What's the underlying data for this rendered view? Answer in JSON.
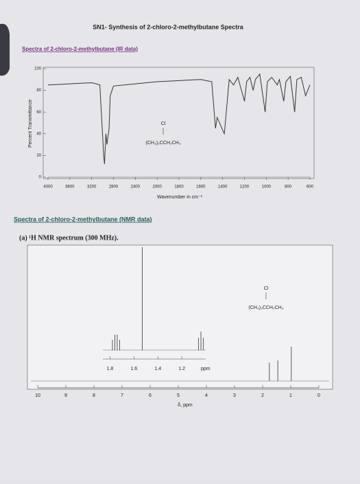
{
  "title": "SN1- Synthesis of 2-chloro-2-methylbutane Spectra",
  "chart_data": [
    {
      "type": "ir",
      "heading": "Spectra of 2-chloro-2-methylbutane (IR data)",
      "xlabel": "Wavenumber in cm⁻¹",
      "ylabel": "Percent Transmittance",
      "annotation": {
        "top": "Cl",
        "main": "(CH₃)₂CCH₂CH₃"
      },
      "x": [
        4000,
        3600,
        3200,
        3050,
        2980,
        2965,
        2940,
        2920,
        2880,
        2860,
        2800,
        2400,
        2000,
        1800,
        1600,
        1500,
        1465,
        1450,
        1385,
        1375,
        1340,
        1300,
        1260,
        1200,
        1180,
        1150,
        1120,
        1100,
        1060,
        1010,
        990,
        950,
        900,
        880,
        840,
        820,
        780,
        740,
        720,
        680,
        640,
        600
      ],
      "values": [
        85,
        86,
        87,
        85,
        20,
        12,
        40,
        30,
        45,
        75,
        84,
        86,
        88,
        89,
        90,
        88,
        45,
        55,
        40,
        50,
        90,
        85,
        92,
        70,
        88,
        92,
        80,
        90,
        95,
        60,
        88,
        92,
        85,
        90,
        70,
        88,
        93,
        60,
        90,
        92,
        75,
        85
      ],
      "color": "#333333",
      "xlim": [
        4000,
        600
      ],
      "ylim": [
        0,
        100
      ],
      "xticks": [
        4000,
        3600,
        3200,
        2800,
        2400,
        2000,
        1800,
        1600,
        1400,
        1200,
        1000,
        800,
        600
      ],
      "yticks": [
        0,
        20,
        40,
        60,
        80,
        100
      ]
    },
    {
      "type": "nmr",
      "heading": "Spectra of 2-chloro-2-methylbutane (NMR data)",
      "subtitle": "(a) ¹H NMR spectrum (300 MHz).",
      "xlabel": "δ, ppm",
      "annotation": {
        "top": "Cl",
        "main": "(CH₃)₂CCH₂CH₃"
      },
      "x": [
        1.76,
        1.46,
        0.98
      ],
      "values": [
        27,
        30,
        50
      ],
      "color": "#333333",
      "xlim": [
        10,
        0
      ],
      "xticks": [
        10,
        9,
        8,
        7,
        6,
        5,
        4,
        3,
        2,
        1,
        0
      ],
      "inset": {
        "xlim": [
          1.86,
          1.0
        ],
        "xticks": [
          1.8,
          1.6,
          1.4,
          1.2
        ],
        "unit": "ppm",
        "x": [
          1.78,
          1.76,
          1.74,
          1.72,
          1.53,
          1.06,
          1.04,
          1.02
        ],
        "values": [
          10,
          15,
          15,
          10,
          100,
          12,
          18,
          12
        ]
      }
    }
  ]
}
